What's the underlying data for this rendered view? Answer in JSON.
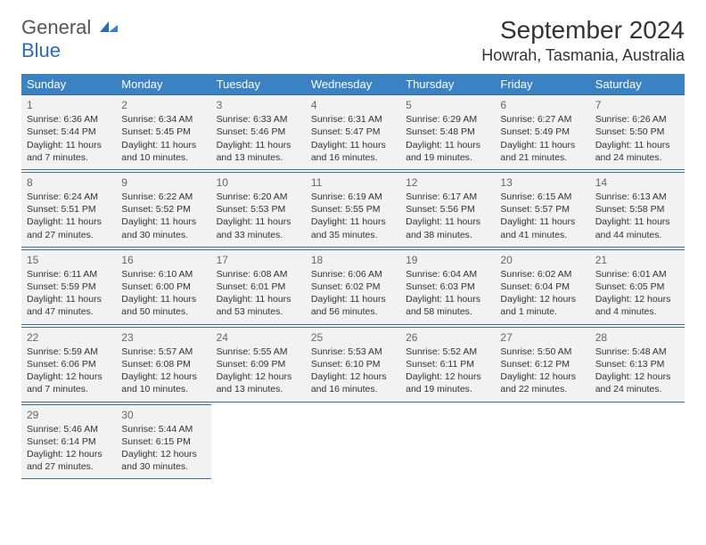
{
  "logo": {
    "text1": "General",
    "text2": "Blue",
    "color1": "#555555",
    "color2": "#2a6db0"
  },
  "title": "September 2024",
  "location": "Howrah, Tasmania, Australia",
  "header_bg": "#3b82c4",
  "cell_bg": "#f2f2f2",
  "border_color": "#3b6a94",
  "day_headers": [
    "Sunday",
    "Monday",
    "Tuesday",
    "Wednesday",
    "Thursday",
    "Friday",
    "Saturday"
  ],
  "weeks": [
    [
      {
        "n": "1",
        "sr": "6:36 AM",
        "ss": "5:44 PM",
        "dl": "11 hours and 7 minutes."
      },
      {
        "n": "2",
        "sr": "6:34 AM",
        "ss": "5:45 PM",
        "dl": "11 hours and 10 minutes."
      },
      {
        "n": "3",
        "sr": "6:33 AM",
        "ss": "5:46 PM",
        "dl": "11 hours and 13 minutes."
      },
      {
        "n": "4",
        "sr": "6:31 AM",
        "ss": "5:47 PM",
        "dl": "11 hours and 16 minutes."
      },
      {
        "n": "5",
        "sr": "6:29 AM",
        "ss": "5:48 PM",
        "dl": "11 hours and 19 minutes."
      },
      {
        "n": "6",
        "sr": "6:27 AM",
        "ss": "5:49 PM",
        "dl": "11 hours and 21 minutes."
      },
      {
        "n": "7",
        "sr": "6:26 AM",
        "ss": "5:50 PM",
        "dl": "11 hours and 24 minutes."
      }
    ],
    [
      {
        "n": "8",
        "sr": "6:24 AM",
        "ss": "5:51 PM",
        "dl": "11 hours and 27 minutes."
      },
      {
        "n": "9",
        "sr": "6:22 AM",
        "ss": "5:52 PM",
        "dl": "11 hours and 30 minutes."
      },
      {
        "n": "10",
        "sr": "6:20 AM",
        "ss": "5:53 PM",
        "dl": "11 hours and 33 minutes."
      },
      {
        "n": "11",
        "sr": "6:19 AM",
        "ss": "5:55 PM",
        "dl": "11 hours and 35 minutes."
      },
      {
        "n": "12",
        "sr": "6:17 AM",
        "ss": "5:56 PM",
        "dl": "11 hours and 38 minutes."
      },
      {
        "n": "13",
        "sr": "6:15 AM",
        "ss": "5:57 PM",
        "dl": "11 hours and 41 minutes."
      },
      {
        "n": "14",
        "sr": "6:13 AM",
        "ss": "5:58 PM",
        "dl": "11 hours and 44 minutes."
      }
    ],
    [
      {
        "n": "15",
        "sr": "6:11 AM",
        "ss": "5:59 PM",
        "dl": "11 hours and 47 minutes."
      },
      {
        "n": "16",
        "sr": "6:10 AM",
        "ss": "6:00 PM",
        "dl": "11 hours and 50 minutes."
      },
      {
        "n": "17",
        "sr": "6:08 AM",
        "ss": "6:01 PM",
        "dl": "11 hours and 53 minutes."
      },
      {
        "n": "18",
        "sr": "6:06 AM",
        "ss": "6:02 PM",
        "dl": "11 hours and 56 minutes."
      },
      {
        "n": "19",
        "sr": "6:04 AM",
        "ss": "6:03 PM",
        "dl": "11 hours and 58 minutes."
      },
      {
        "n": "20",
        "sr": "6:02 AM",
        "ss": "6:04 PM",
        "dl": "12 hours and 1 minute."
      },
      {
        "n": "21",
        "sr": "6:01 AM",
        "ss": "6:05 PM",
        "dl": "12 hours and 4 minutes."
      }
    ],
    [
      {
        "n": "22",
        "sr": "5:59 AM",
        "ss": "6:06 PM",
        "dl": "12 hours and 7 minutes."
      },
      {
        "n": "23",
        "sr": "5:57 AM",
        "ss": "6:08 PM",
        "dl": "12 hours and 10 minutes."
      },
      {
        "n": "24",
        "sr": "5:55 AM",
        "ss": "6:09 PM",
        "dl": "12 hours and 13 minutes."
      },
      {
        "n": "25",
        "sr": "5:53 AM",
        "ss": "6:10 PM",
        "dl": "12 hours and 16 minutes."
      },
      {
        "n": "26",
        "sr": "5:52 AM",
        "ss": "6:11 PM",
        "dl": "12 hours and 19 minutes."
      },
      {
        "n": "27",
        "sr": "5:50 AM",
        "ss": "6:12 PM",
        "dl": "12 hours and 22 minutes."
      },
      {
        "n": "28",
        "sr": "5:48 AM",
        "ss": "6:13 PM",
        "dl": "12 hours and 24 minutes."
      }
    ],
    [
      {
        "n": "29",
        "sr": "5:46 AM",
        "ss": "6:14 PM",
        "dl": "12 hours and 27 minutes."
      },
      {
        "n": "30",
        "sr": "5:44 AM",
        "ss": "6:15 PM",
        "dl": "12 hours and 30 minutes."
      },
      null,
      null,
      null,
      null,
      null
    ]
  ],
  "labels": {
    "sunrise": "Sunrise:",
    "sunset": "Sunset:",
    "daylight": "Daylight:"
  }
}
